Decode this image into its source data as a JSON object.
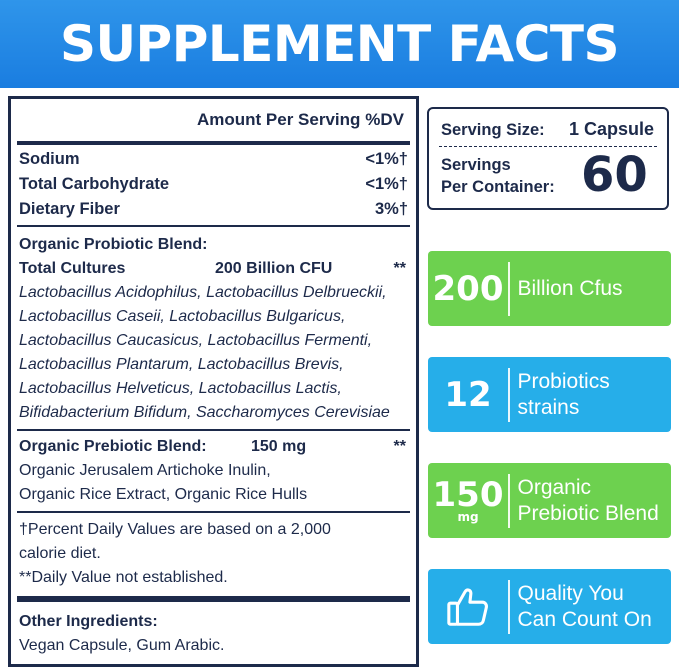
{
  "header": {
    "title": "SUPPLEMENT FACTS"
  },
  "facts": {
    "amount_per_serving": "Amount Per Serving",
    "dv_header": "%DV",
    "nutrients": [
      {
        "name": "Sodium",
        "value": "<1%†"
      },
      {
        "name": "Total Carbohydrate",
        "value": "<1%†"
      },
      {
        "name": "Dietary Fiber",
        "value": "3%†"
      }
    ],
    "probiotic": {
      "title": "Organic Probiotic Blend:",
      "cultures_label": "Total Cultures",
      "cultures_amount": "200 Billion CFU",
      "cultures_dv": "**",
      "strains": [
        "Lactobacillus Acidophilus, Lactobacillus Delbrueckii,",
        "Lactobacillus Caseii, Lactobacillus Bulgaricus,",
        "Lactobacillus Caucasicus, Lactobacillus Fermenti,",
        "Lactobacillus Plantarum, Lactobacillus Brevis,",
        "Lactobacillus Helveticus, Lactobacillus Lactis,",
        "Bifidabacterium Bifidum, Saccharomyces Cerevisiae"
      ]
    },
    "prebiotic": {
      "title": "Organic Prebiotic Blend:",
      "amount": "150 mg",
      "dv": "**",
      "lines": [
        "Organic Jerusalem Artichoke Inulin,",
        "Organic Rice Extract, Organic Rice Hulls"
      ]
    },
    "footnotes": [
      "†Percent Daily Values are based on a 2,000",
      "calorie diet.",
      "**Daily Value not established."
    ],
    "other": {
      "title": "Other Ingredients:",
      "text": "Vegan Capsule, Gum Arabic."
    }
  },
  "serving": {
    "size_label": "Serving Size:",
    "size_value": "1 Capsule",
    "servings_label_1": "Servings",
    "servings_label_2": "Per Container:",
    "servings_value": "60"
  },
  "cards": [
    {
      "big": "200",
      "sub": "",
      "line1": "Billion Cfus",
      "line2": "",
      "color": "#6dd14f"
    },
    {
      "big": "12",
      "sub": "",
      "line1": "Probiotics",
      "line2": "strains",
      "color": "#26aee9"
    },
    {
      "big": "150",
      "sub": "mg",
      "line1": "Organic",
      "line2": "Prebiotic Blend",
      "color": "#6dd14f"
    },
    {
      "big": "",
      "sub": "",
      "line1": "Quality You",
      "line2": "Can Count On",
      "color": "#26aee9",
      "icon": "thumbs-up-icon"
    }
  ]
}
